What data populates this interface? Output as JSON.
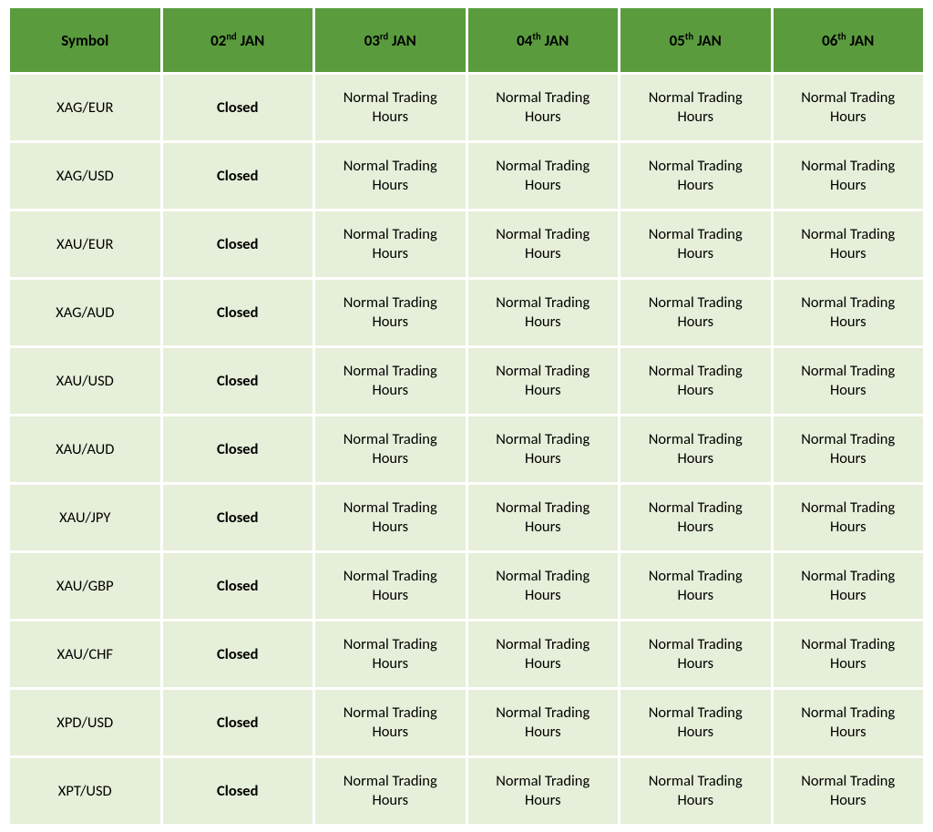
{
  "colors": {
    "header_bg": "#5a9b3e",
    "header_fg": "#000000",
    "cell_bg": "#e6efd9",
    "cell_fg": "#000000"
  },
  "columns": [
    {
      "label": "Symbol",
      "sup": ""
    },
    {
      "label": "02 JAN",
      "sup": "nd",
      "sup_after": "02"
    },
    {
      "label": "03 JAN",
      "sup": "rd",
      "sup_after": "03"
    },
    {
      "label": "04 JAN",
      "sup": "th",
      "sup_after": "04"
    },
    {
      "label": "05 JAN",
      "sup": "th",
      "sup_after": "05"
    },
    {
      "label": "06 JAN",
      "sup": "th",
      "sup_after": "06"
    }
  ],
  "symbols": [
    "XAG/EUR",
    "XAG/USD",
    "XAU/EUR",
    "XAG/AUD",
    "XAU/USD",
    "XAU/AUD",
    "XAU/JPY",
    "XAU/GBP",
    "XAU/CHF",
    "XPD/USD",
    "XPT/USD"
  ],
  "closed_label": "Closed",
  "normal_label": "Normal Trading Hours",
  "rows": [
    [
      "XAG/EUR",
      "Closed",
      "Normal Trading Hours",
      "Normal Trading Hours",
      "Normal Trading Hours",
      "Normal Trading Hours"
    ],
    [
      "XAG/USD",
      "Closed",
      "Normal Trading Hours",
      "Normal Trading Hours",
      "Normal Trading Hours",
      "Normal Trading Hours"
    ],
    [
      "XAU/EUR",
      "Closed",
      "Normal Trading Hours",
      "Normal Trading Hours",
      "Normal Trading Hours",
      "Normal Trading Hours"
    ],
    [
      "XAG/AUD",
      "Closed",
      "Normal Trading Hours",
      "Normal Trading Hours",
      "Normal Trading Hours",
      "Normal Trading Hours"
    ],
    [
      "XAU/USD",
      "Closed",
      "Normal Trading Hours",
      "Normal Trading Hours",
      "Normal Trading Hours",
      "Normal Trading Hours"
    ],
    [
      "XAU/AUD",
      "Closed",
      "Normal Trading Hours",
      "Normal Trading Hours",
      "Normal Trading Hours",
      "Normal Trading Hours"
    ],
    [
      "XAU/JPY",
      "Closed",
      "Normal Trading Hours",
      "Normal Trading Hours",
      "Normal Trading Hours",
      "Normal Trading Hours"
    ],
    [
      "XAU/GBP",
      "Closed",
      "Normal Trading Hours",
      "Normal Trading Hours",
      "Normal Trading Hours",
      "Normal Trading Hours"
    ],
    [
      "XAU/CHF",
      "Closed",
      "Normal Trading Hours",
      "Normal Trading Hours",
      "Normal Trading Hours",
      "Normal Trading Hours"
    ],
    [
      "XPD/USD",
      "Closed",
      "Normal Trading Hours",
      "Normal Trading Hours",
      "Normal Trading Hours",
      "Normal Trading Hours"
    ],
    [
      "XPT/USD",
      "Closed",
      "Normal Trading Hours",
      "Normal Trading Hours",
      "Normal Trading Hours",
      "Normal Trading Hours"
    ]
  ]
}
